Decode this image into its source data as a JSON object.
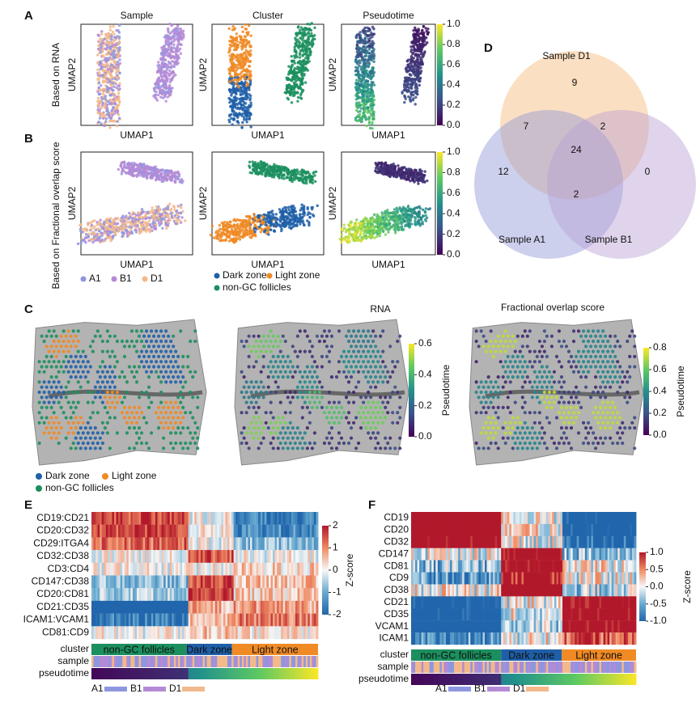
{
  "A": {
    "label": "A",
    "row_title": "Based on RNA",
    "titles": [
      "Sample",
      "Cluster",
      "Pseudotime"
    ],
    "x_label": "UMAP1",
    "y_label": "UMAP2",
    "colorbar": [
      "1.0",
      "0.8",
      "0.6",
      "0.4",
      "0.2",
      "0.0"
    ]
  },
  "B": {
    "label": "B",
    "row_title": "Based on Fractional overlap score",
    "x_label": "UMAP1",
    "y_label": "UMAP2",
    "colorbar": [
      "1.0",
      "0.8",
      "0.6",
      "0.4",
      "0.2",
      "0.0"
    ],
    "sample_legend": [
      "A1",
      "B1",
      "D1"
    ],
    "cluster_legend": [
      "Dark zone",
      "Light zone",
      "non-GC follicles"
    ]
  },
  "C": {
    "label": "C",
    "titles": [
      "RNA",
      "Fractional overlap score"
    ],
    "colorbars": [
      {
        "title": "Pseudotime",
        "ticks": [
          "0.6",
          "0.4",
          "0.2",
          "0.0"
        ]
      },
      {
        "title": "Pseudotime",
        "ticks": [
          "0.8",
          "0.6",
          "0.4",
          "0.2",
          "0.0"
        ]
      }
    ],
    "legend": [
      "Dark zone",
      "Light zone",
      "non-GC follicles"
    ]
  },
  "D": {
    "label": "D",
    "sets": [
      "Sample D1",
      "Sample A1",
      "Sample B1"
    ],
    "regions": [
      "9",
      "7",
      "2",
      "24",
      "12",
      "0",
      "2"
    ]
  },
  "E": {
    "label": "E",
    "rows": [
      "CD19:CD21",
      "CD20:CD32",
      "CD29:ITGA4",
      "CD32:CD38",
      "CD3:CD4",
      "CD147:CD38",
      "CD20:CD81",
      "CD21:CD35",
      "ICAM1:VCAM1",
      "CD81:CD9"
    ],
    "annotation_rows": [
      "cluster",
      "sample",
      "pseudotime"
    ],
    "clusters": [
      "non-GC follicles",
      "Dark zone",
      "Light zone"
    ],
    "colorbar_title": "Z-score",
    "colorbar_ticks": [
      "2",
      "1",
      "0",
      "-1",
      "-2"
    ],
    "sample_legend": [
      "A1",
      "B1",
      "D1"
    ]
  },
  "F": {
    "label": "F",
    "rows": [
      "CD19",
      "CD20",
      "CD32",
      "CD147",
      "CD81",
      "CD9",
      "CD38",
      "CD21",
      "CD35",
      "VCAM1",
      "ICAM1"
    ],
    "annotation_rows": [
      "cluster",
      "sample",
      "pseudotime"
    ],
    "clusters": [
      "non-GC follicles",
      "Dark zone",
      "Light zone"
    ],
    "colorbar_title": "Z-score",
    "colorbar_ticks": [
      "1.0",
      "0.5",
      "0.0",
      "-0.5",
      "-1.0"
    ],
    "sample_legend": [
      "A1",
      "B1",
      "D1"
    ]
  }
}
